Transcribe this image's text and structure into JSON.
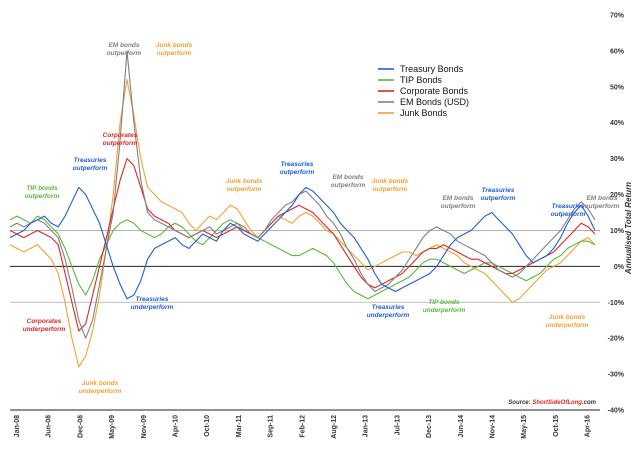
{
  "chart_data": {
    "type": "line",
    "ylabel": "Annualised Total Return",
    "ylim": [
      -40,
      70
    ],
    "y_ticks": [
      "70%",
      "60%",
      "50%",
      "40%",
      "30%",
      "20%",
      "10%",
      "0%",
      "-10%",
      "-20%",
      "-30%",
      "-40%"
    ],
    "x_ticks": [
      "Jan-08",
      "Jun-08",
      "Dec-08",
      "May-09",
      "Nov-09",
      "Apr-10",
      "Oct-10",
      "Mar-11",
      "Sep-11",
      "Feb-12",
      "Aug-12",
      "Jan-13",
      "Jul-13",
      "Dec-13",
      "Jun-14",
      "Nov-14",
      "May-15",
      "Oct-15",
      "Apr-16"
    ],
    "reference_lines": [
      10,
      0,
      -10
    ],
    "legend_position": "top-center",
    "legend": [
      "Treasury Bonds",
      "TIP Bonds",
      "Corporate Bonds",
      "EM Bonds (USD)",
      "Junk Bonds"
    ],
    "series": [
      {
        "name": "Treasury Bonds",
        "color": "#1f5fd6",
        "values": [
          8,
          9,
          10,
          12,
          13,
          14,
          12,
          11,
          14,
          18,
          22,
          20,
          16,
          12,
          6,
          0,
          -5,
          -9,
          -8,
          -4,
          2,
          5,
          6,
          7,
          8,
          6,
          5,
          7,
          9,
          8,
          7,
          10,
          12,
          11,
          9,
          8,
          7,
          9,
          11,
          13,
          15,
          17,
          20,
          22,
          21,
          19,
          17,
          15,
          12,
          10,
          8,
          5,
          2,
          -2,
          -5,
          -6,
          -7,
          -6,
          -5,
          -4,
          -3,
          -2,
          0,
          3,
          6,
          8,
          9,
          10,
          12,
          14,
          15,
          13,
          11,
          9,
          6,
          3,
          1,
          2,
          3,
          5,
          8,
          12,
          15,
          17,
          14,
          10
        ]
      },
      {
        "name": "TIP Bonds",
        "color": "#5cb83a",
        "values": [
          13,
          14,
          13,
          12,
          14,
          13,
          11,
          9,
          5,
          0,
          -5,
          -8,
          -4,
          2,
          6,
          10,
          12,
          13,
          12,
          10,
          9,
          8,
          9,
          11,
          12,
          11,
          9,
          7,
          6,
          8,
          10,
          12,
          13,
          12,
          10,
          9,
          8,
          7,
          6,
          5,
          4,
          3,
          3,
          4,
          5,
          4,
          3,
          1,
          -2,
          -5,
          -7,
          -8,
          -9,
          -8,
          -7,
          -6,
          -5,
          -4,
          -3,
          -1,
          1,
          2,
          2,
          1,
          0,
          -1,
          -2,
          -1,
          0,
          1,
          1,
          0,
          -1,
          -2,
          -3,
          -4,
          -3,
          -2,
          0,
          2,
          3,
          5,
          6,
          7,
          7,
          6
        ]
      },
      {
        "name": "Corporate Bonds",
        "color": "#e02626",
        "values": [
          10,
          9,
          8,
          9,
          10,
          9,
          8,
          6,
          -2,
          -10,
          -18,
          -16,
          -8,
          0,
          8,
          16,
          24,
          30,
          28,
          22,
          16,
          14,
          13,
          12,
          10,
          9,
          8,
          9,
          10,
          9,
          8,
          9,
          10,
          11,
          10,
          9,
          8,
          10,
          12,
          14,
          15,
          16,
          17,
          16,
          15,
          13,
          11,
          9,
          6,
          3,
          0,
          -3,
          -5,
          -6,
          -5,
          -4,
          -3,
          -2,
          0,
          2,
          4,
          5,
          5,
          6,
          5,
          4,
          3,
          2,
          2,
          1,
          0,
          -1,
          -2,
          -2,
          -1,
          0,
          1,
          2,
          3,
          4,
          6,
          8,
          10,
          12,
          11,
          9
        ]
      },
      {
        "name": "EM Bonds (USD)",
        "color": "#808080",
        "values": [
          11,
          12,
          11,
          12,
          13,
          12,
          10,
          8,
          2,
          -6,
          -15,
          -20,
          -15,
          -5,
          5,
          15,
          35,
          60,
          40,
          24,
          15,
          13,
          12,
          11,
          10,
          9,
          8,
          9,
          10,
          11,
          9,
          10,
          11,
          12,
          11,
          9,
          8,
          10,
          13,
          15,
          17,
          18,
          20,
          21,
          19,
          17,
          14,
          12,
          9,
          5,
          2,
          -2,
          -5,
          -7,
          -6,
          -5,
          -3,
          -1,
          2,
          5,
          8,
          10,
          11,
          10,
          9,
          7,
          6,
          5,
          4,
          3,
          1,
          -1,
          -2,
          -3,
          -2,
          0,
          2,
          4,
          6,
          8,
          10,
          13,
          16,
          18,
          16,
          13
        ]
      },
      {
        "name": "Junk Bonds",
        "color": "#f5a030",
        "values": [
          6,
          5,
          4,
          5,
          6,
          4,
          2,
          -2,
          -10,
          -20,
          -28,
          -25,
          -18,
          -8,
          5,
          20,
          40,
          52,
          42,
          30,
          22,
          20,
          18,
          17,
          16,
          15,
          12,
          10,
          12,
          14,
          13,
          15,
          17,
          16,
          13,
          10,
          8,
          10,
          12,
          14,
          13,
          12,
          14,
          15,
          14,
          12,
          10,
          9,
          7,
          5,
          3,
          1,
          -1,
          0,
          1,
          2,
          3,
          4,
          4,
          3,
          4,
          5,
          6,
          5,
          4,
          3,
          1,
          0,
          -1,
          -2,
          -4,
          -6,
          -8,
          -10,
          -9,
          -7,
          -5,
          -3,
          -1,
          0,
          1,
          3,
          5,
          7,
          8,
          6
        ]
      }
    ],
    "annotations": [
      {
        "text": "TIP bonds\noutperform",
        "color": "#5cb83a"
      },
      {
        "text": "Treasuries\noutperform",
        "color": "#1f5fd6"
      },
      {
        "text": "EM bonds\noutperform",
        "color": "#808080"
      },
      {
        "text": "Junk bonds\noutperform",
        "color": "#f5a030"
      },
      {
        "text": "Corporates\noutperform",
        "color": "#e02626"
      },
      {
        "text": "Junk bonds\noutperform",
        "color": "#f5a030"
      },
      {
        "text": "Treasuries\noutperform",
        "color": "#1f5fd6"
      },
      {
        "text": "EM bonds\noutperform",
        "color": "#808080"
      },
      {
        "text": "Junk bonds\noutperform",
        "color": "#f5a030"
      },
      {
        "text": "EM bonds\noutperform",
        "color": "#808080"
      },
      {
        "text": "Treasuries\noutperform",
        "color": "#1f5fd6"
      },
      {
        "text": "Treasuries\noutperform",
        "color": "#1f5fd6"
      },
      {
        "text": "EM bonds\noutperform",
        "color": "#808080"
      },
      {
        "text": "Corporates\nunderperform",
        "color": "#e02626"
      },
      {
        "text": "Treasuries\nunderperform",
        "color": "#1f5fd6"
      },
      {
        "text": "Junk bonds\nunderperform",
        "color": "#f5a030"
      },
      {
        "text": "Treasuries\nunderperform",
        "color": "#1f5fd6"
      },
      {
        "text": "TIP bonds\nunderperform",
        "color": "#5cb83a"
      },
      {
        "text": "Junk bonds\nunderperform",
        "color": "#f5a030"
      }
    ],
    "source": {
      "prefix": "Source: ",
      "site": "ShortSideOfLong",
      "suffix": ".com"
    }
  }
}
